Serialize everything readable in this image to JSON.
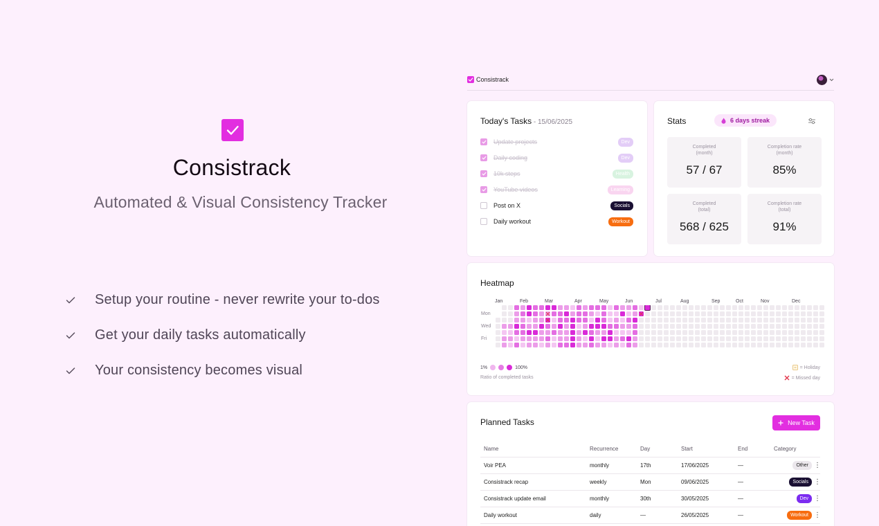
{
  "hero": {
    "title": "Consistrack",
    "subtitle": "Automated & Visual Consistency Tracker",
    "features": [
      "Setup your routine - never rewrite your to-dos",
      "Get your daily tasks automatically",
      "Your consistency becomes visual"
    ]
  },
  "app": {
    "brand": "Consistrack",
    "accent": "#e22ee0"
  },
  "today": {
    "title": "Today's Tasks",
    "date": " - 15/06/2025",
    "tasks": [
      {
        "name": "Update projects",
        "done": true,
        "tag": "Dev",
        "tag_bg": "#e3cdf7",
        "tag_fg": "#ffffff"
      },
      {
        "name": "Daily coding",
        "done": true,
        "tag": "Dev",
        "tag_bg": "#e3cdf7",
        "tag_fg": "#ffffff"
      },
      {
        "name": "10k steps",
        "done": true,
        "tag": "Health",
        "tag_bg": "#d8f3e0",
        "tag_fg": "#ffffff"
      },
      {
        "name": "YouTube videos",
        "done": true,
        "tag": "Learning",
        "tag_bg": "#f9d5f0",
        "tag_fg": "#ffffff"
      },
      {
        "name": "Post on X",
        "done": false,
        "tag": "Socials",
        "tag_bg": "#1a1033",
        "tag_fg": "#ffffff"
      },
      {
        "name": "Daily workout",
        "done": false,
        "tag": "Workout",
        "tag_bg": "#f76d10",
        "tag_fg": "#ffffff"
      }
    ]
  },
  "stats": {
    "title": "Stats",
    "streak": "6 days streak",
    "boxes": [
      {
        "label1": "Completed",
        "label2": "(month)",
        "value": "57 / 67"
      },
      {
        "label1": "Completion rate",
        "label2": "(month)",
        "value": "85%"
      },
      {
        "label1": "Completed",
        "label2": "(total)",
        "value": "568 / 625"
      },
      {
        "label1": "Completion rate",
        "label2": "(total)",
        "value": "91%"
      }
    ]
  },
  "heatmap": {
    "title": "Heatmap",
    "months": [
      "Jan",
      "Feb",
      "Mar",
      "Apr",
      "May",
      "Jun",
      "Jul",
      "Aug",
      "Sep",
      "Oct",
      "Nov",
      "Dec"
    ],
    "days": [
      "Mon",
      "Wed",
      "Fri"
    ],
    "legend_min": "1%",
    "legend_max": "100%",
    "legend_caption": "Ratio of completed tasks",
    "holiday_label": "= Holiday",
    "missed_label": "= Missed day",
    "colors": [
      "#efeaef",
      "#f4c6f2",
      "#ec9de9",
      "#e46ee2",
      "#d92ad8"
    ]
  },
  "planned": {
    "title": "Planned Tasks",
    "new_task": "New Task",
    "columns": [
      "Name",
      "Recurrence",
      "Day",
      "Start",
      "End",
      "Category"
    ],
    "rows": [
      {
        "name": "Voir PEA",
        "recurrence": "monthly",
        "day": "17th",
        "start": "17/06/2025",
        "end": "—",
        "category": "Other",
        "cat_bg": "#ebe7ec",
        "cat_fg": "#222222"
      },
      {
        "name": "Consistrack recap",
        "recurrence": "weekly",
        "day": "Mon",
        "start": "09/06/2025",
        "end": "—",
        "category": "Socials",
        "cat_bg": "#1a1033",
        "cat_fg": "#ffffff"
      },
      {
        "name": "Consistrack update email",
        "recurrence": "monthly",
        "day": "30th",
        "start": "30/05/2025",
        "end": "—",
        "category": "Dev",
        "cat_bg": "#7c2cf0",
        "cat_fg": "#ffffff"
      },
      {
        "name": "Daily workout",
        "recurrence": "daily",
        "day": "—",
        "start": "26/05/2025",
        "end": "—",
        "category": "Workout",
        "cat_bg": "#f76d10",
        "cat_fg": "#ffffff"
      }
    ]
  }
}
